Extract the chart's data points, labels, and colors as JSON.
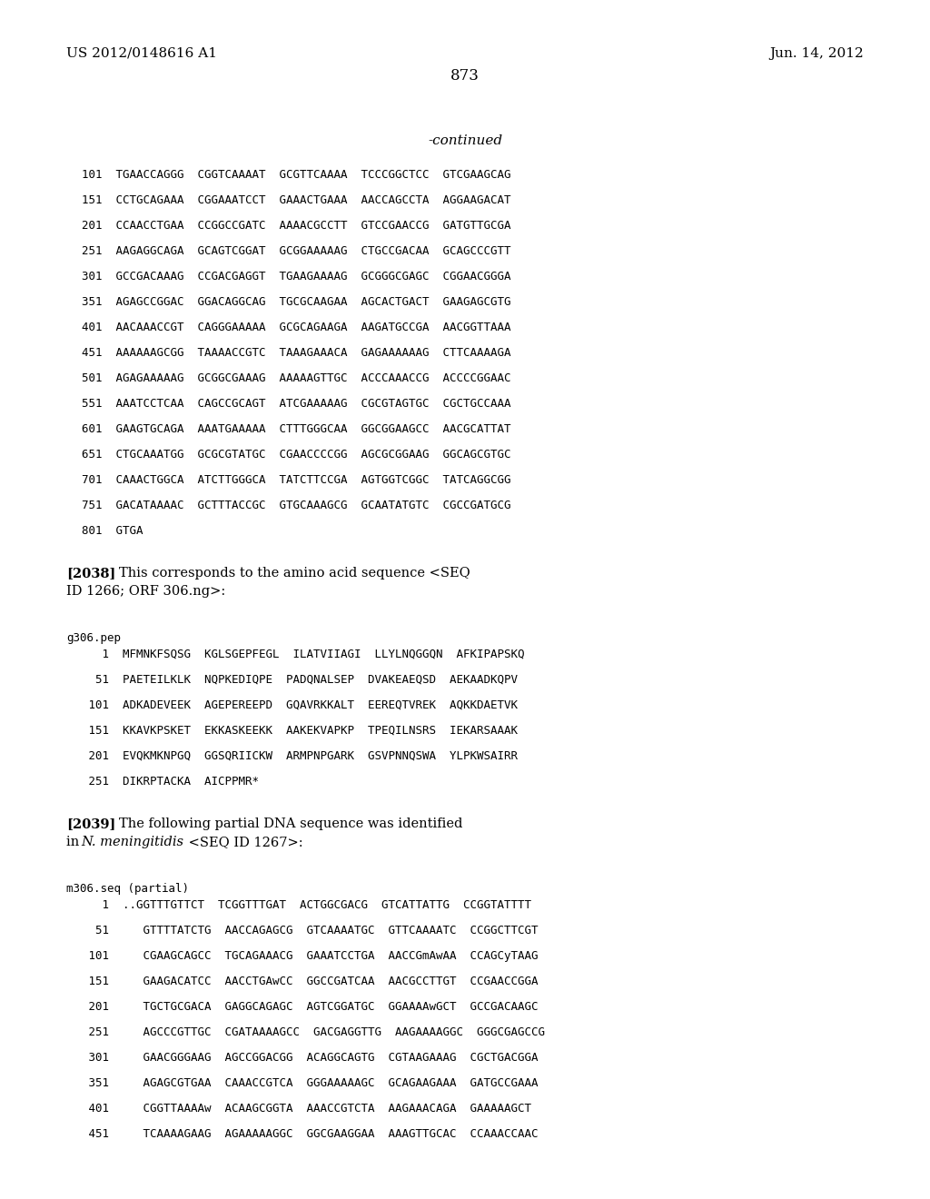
{
  "header_left": "US 2012/0148616 A1",
  "header_right": "Jun. 14, 2012",
  "page_number": "873",
  "continued": "-continued",
  "background_color": "#ffffff",
  "text_color": "#000000",
  "dna_lines_top": [
    "101  TGAACCAGGG  CGGTCAAAAT  GCGTTCAAAA  TCCCGGCTCC  GTCGAAGCAG",
    "151  CCTGCAGAAA  CGGAAATCCT  GAAACTGAAA  AACCAGCCTA  AGGAAGACAT",
    "201  CCAACCTGAA  CCGGCCGATC  AAAACGCCTT  GTCCGAACCG  GATGTTGCGA",
    "251  AAGAGGCAGA  GCAGTCGGAT  GCGGAAAAAG  CTGCCGACAA  GCAGCCCGTT",
    "301  GCCGACAAAG  CCGACGAGGT  TGAAGAAAAG  GCGGGCGAGC  CGGAACGGGA",
    "351  AGAGCCGGAC  GGACAGGCAG  TGCGCAAGAA  AGCACTGACT  GAAGAGCGTG",
    "401  AACAAACCGT  CAGGGAAAAA  GCGCAGAAGA  AAGATGCCGA  AACGGTTAAA",
    "451  AAAAAAGCGG  TAAAACCGTC  TAAAGAAACA  GAGAAAAAAG  CTTCAAAAGA",
    "501  AGAGAAAAAG  GCGGCGAAAG  AAAAAGTTGC  ACCCAAACCG  ACCCCGGAAC",
    "551  AAATCCTCAA  CAGCCGCAGT  ATCGAAAAAG  CGCGTAGTGC  CGCTGCCAAA",
    "601  GAAGTGCAGA  AAATGAAAAA  CTTTGGGCAA  GGCGGAAGCC  AACGCATTAT",
    "651  CTGCAAATGG  GCGCGTATGC  CGAACCCCGG  AGCGCGGAAG  GGCAGCGTGC",
    "701  CAAACTGGCA  ATCTTGGGCA  TATCTTCCGA  AGTGGTCGGC  TATCAGGCGG",
    "751  GACATAAAAC  GCTTTACCGC  GTGCAAAGCG  GCAATATGTC  CGCCGATGCG",
    "801  GTGA"
  ],
  "para2038_tag": "[2038]",
  "para2038_text1": "This corresponds to the amino acid sequence <SEQ",
  "para2038_text2": "ID 1266; ORF 306.ng>:",
  "label_pep": "g306.pep",
  "pep_lines": [
    "   1  MFMNKFSQSG  KGLSGEPFEGL  ILATVIIAGI  LLYLNQGGQN  AFKIPAPSKQ",
    "  51  PAETEILKLK  NQPKEDIQPE  PADQNALSEP  DVAKEAEQSD  AEKAADKQPV",
    " 101  ADKADEVEEK  AGEPEREEPD  GQAVRKKALT  EEREQTVREK  AQKKDAETVK",
    " 151  KKAVKPSKET  EKKASKEEKK  AAKEKVAPKP  TPEQILNSRS  IEKARSAAAK",
    " 201  EVQKMKNPGQ  GGSQRIICKW  ARMPNPGARK  GSVPNNQSWA  YLPKWSAIRR",
    " 251  DIKRPTACKA  AICPPMR*"
  ],
  "para2039_tag": "[2039]",
  "para2039_text1": "The following partial DNA sequence was identified",
  "para2039_text2a": "in ",
  "para2039_text2b": "N. meningitidis",
  "para2039_text2c": " <SEQ ID 1267>:",
  "label_dna2": "m306.seq (partial)",
  "dna_lines_bot": [
    "   1  ..GGTTTGTTCT  TCGGTTTGAT  ACTGGCGACG  GTCATTATTG  CCGGTATTTT",
    "  51     GTTTTATCTG  AACCAGAGCG  GTCAAAATGC  GTTCAAAATC  CCGGCTTCGT",
    " 101     CGAAGCAGCC  TGCAGAAACG  GAAATCCTGA  AACCGmAwAA  CCAGCyTAAG",
    " 151     GAAGACATCC  AACCTGAwCC  GGCCGATCAA  AACGCCTTGT  CCGAACCGGA",
    " 201     TGCTGCGACA  GAGGCAGAGC  AGTCGGATGC  GGAAAAwGCT  GCCGACAAGC",
    " 251     AGCCCGTTGC  CGATAAAAGCC  GACGAGGTTG  AAGAAAAGGC  GGGCGAGCCG",
    " 301     GAACGGGAAG  AGCCGGACGG  ACAGGCAGTG  CGTAAGAAAG  CGCTGACGGA",
    " 351     AGAGCGTGAA  CAAACCGTCA  GGGAAAAAGC  GCAGAAGAAA  GATGCCGAAA",
    " 401     CGGTTAAAAw  ACAAGCGGTA  AAACCGTCTA  AAGAAACAGA  GAAAAAGCT",
    " 451     TCAAAAGAAG  AGAAAAAGGC  GGCGAAGGAA  AAAGTTGCAC  CCAAACCAAC"
  ]
}
